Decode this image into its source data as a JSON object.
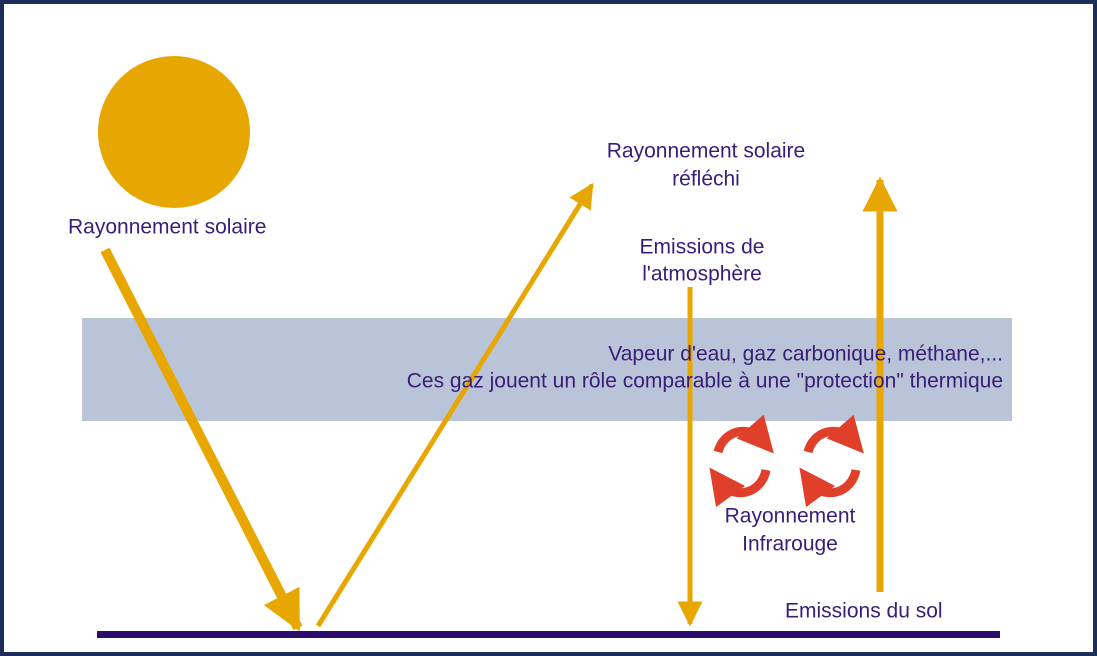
{
  "labels": {
    "incoming": "Rayonnement solaire",
    "reflected": [
      "Rayonnement solaire",
      "réfléchi"
    ],
    "atmosphere_emission": [
      "Emissions de",
      "l'atmosphère"
    ],
    "band": [
      "Vapeur d'eau, gaz carbonique, méthane,...",
      "Ces gaz jouent un rôle comparable à une \"protection\" thermique"
    ],
    "infrared": [
      "Rayonnement",
      "Infrarouge"
    ],
    "ground_emission": "Emissions du sol"
  }
}
